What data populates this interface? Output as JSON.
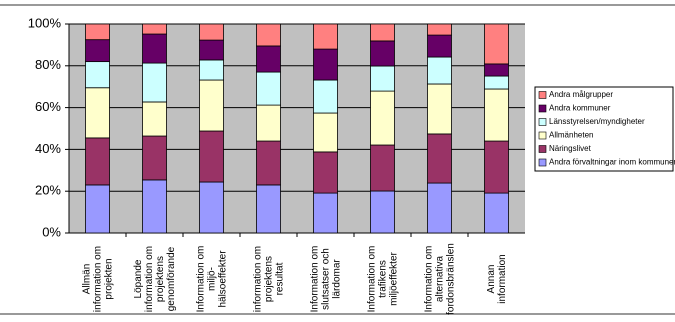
{
  "chart_data": {
    "type": "stacked_bar",
    "categories": [
      "Allmän information om projekten",
      "Löpande information om projektens genomförande",
      "Information om miljö- hälsoeffekter",
      "information om projektens resultat",
      "Information om slutsatser och lärdomar",
      "Information om trafikens miljöeffekter",
      "Information om alternativa fordonsbränslen",
      "Annan information"
    ],
    "series": [
      {
        "name": "Andra förvaltningar inom kommunen",
        "color": "#9999ff",
        "values": [
          23,
          25.4,
          24.4,
          23,
          19.1,
          20.1,
          23.9,
          19.1
        ]
      },
      {
        "name": "Näringslivet",
        "color": "#993366",
        "values": [
          22.5,
          21,
          24.4,
          21,
          19.7,
          22,
          23.5,
          24.9
        ]
      },
      {
        "name": "Allmänheten",
        "color": "#ffffcc",
        "values": [
          24,
          16.3,
          24.4,
          17.2,
          18.6,
          25.8,
          23.9,
          24.9
        ]
      },
      {
        "name": "Länsstyrelsen/myndigheter",
        "color": "#ccffff",
        "values": [
          12.5,
          18.6,
          9.6,
          15.8,
          15.8,
          12,
          12.9,
          6.2
        ]
      },
      {
        "name": "Andra kommuner",
        "color": "#660066",
        "values": [
          10.5,
          13.9,
          9.5,
          12.5,
          14.8,
          12,
          10.5,
          5.8
        ]
      },
      {
        "name": "Andra målgrupper",
        "color": "#ff8080",
        "values": [
          7.5,
          4.8,
          7.7,
          10.5,
          12,
          8.1,
          5.3,
          19.1
        ]
      }
    ],
    "ylim": [
      0,
      100
    ],
    "yticks": [
      {
        "value": 0,
        "label": "0%"
      },
      {
        "value": 20,
        "label": "20%"
      },
      {
        "value": 40,
        "label": "40%"
      },
      {
        "value": 60,
        "label": "60%"
      },
      {
        "value": 80,
        "label": "80%"
      },
      {
        "value": 100,
        "label": "100%"
      }
    ],
    "grid": true,
    "legend": "right"
  }
}
